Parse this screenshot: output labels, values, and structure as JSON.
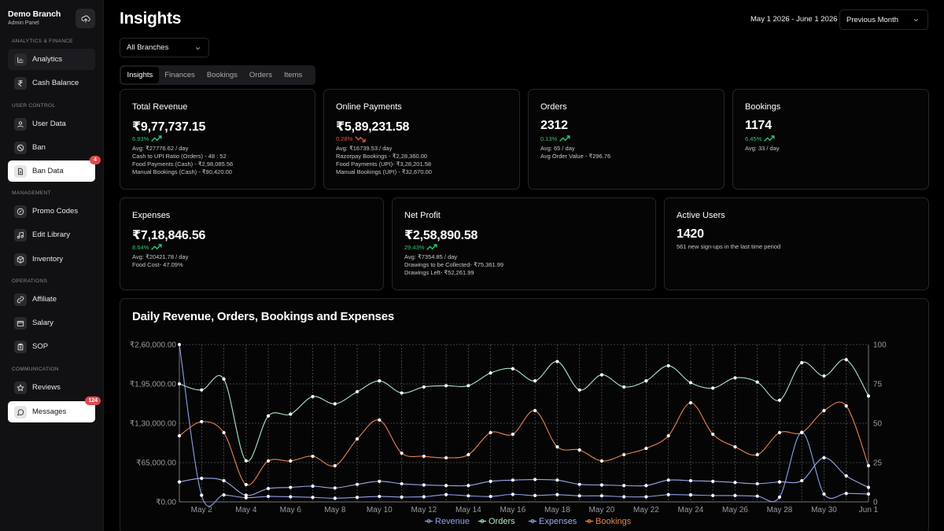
{
  "sidebar": {
    "brand_name": "Demo Branch",
    "brand_sub": "Admin Panel",
    "sections": {
      "analytics": "ANALYTICS & FINANCE",
      "user": "USER CONTROL",
      "management": "MANAGEMENT",
      "operations": "OPERATIONS",
      "communication": "COMMUNICATION"
    },
    "items": {
      "analytics": "Analytics",
      "cash_balance": "Cash Balance",
      "user_data": "User Data",
      "ban": "Ban",
      "ban_data": "Ban Data",
      "ban_data_badge": "4",
      "promo_codes": "Promo Codes",
      "edit_library": "Edit Library",
      "inventory": "Inventory",
      "affiliate": "Affiliate",
      "salary": "Salary",
      "sop": "SOP",
      "reviews": "Reviews",
      "messages": "Messages",
      "messages_badge": "124"
    }
  },
  "header": {
    "title": "Insights",
    "date_range": "May 1 2026 - June 1 2026",
    "period": "Previous Month",
    "branch": "All Branches"
  },
  "tabs": [
    "Insights",
    "Finances",
    "Bookings",
    "Orders",
    "Items"
  ],
  "cards": {
    "revenue": {
      "title": "Total Revenue",
      "value": "₹9,77,737.15",
      "change": "6.93%",
      "details": [
        "Avg: ₹27776.62 / day",
        "Cash to UPI Ratio (Orders) - 48 : 52",
        "Food Payments (Cash) - ₹2,98,085.56",
        "Manual Bookings (Cash) - ₹90,420.00"
      ]
    },
    "online": {
      "title": "Online Payments",
      "value": "₹5,89,231.58",
      "change": "0.28%",
      "details": [
        "Avg: ₹16739.53 / day",
        "Razorpay Bookings - ₹2,28,360.00",
        "Food Payments (UPI)- ₹3,28,201.58",
        "Manual Bookings (UPI) - ₹32,670.00"
      ]
    },
    "orders": {
      "title": "Orders",
      "value": "2312",
      "change": "0.13%",
      "details": [
        "Avg: 65 / day",
        "Avg Order Value - ₹296.76"
      ]
    },
    "bookings": {
      "title": "Bookings",
      "value": "1174",
      "change": "6.45%",
      "details": [
        "Avg: 33 / day"
      ]
    },
    "expenses": {
      "title": "Expenses",
      "value": "₹7,18,846.56",
      "change": "8.64%",
      "details": [
        "Avg: ₹20421.78 / day",
        "Food Cost- 47.09%"
      ]
    },
    "profit": {
      "title": "Net Profit",
      "value": "₹2,58,890.58",
      "change": "29.43%",
      "details": [
        "Avg: ₹7354.85 / day",
        "Drawings to be Collected- ₹75,361.99",
        "Drawings Left- ₹52,261.99"
      ]
    },
    "users": {
      "title": "Active Users",
      "value": "1420",
      "details": [
        "561 new sign-ups in the last time period"
      ]
    }
  },
  "chart_data": {
    "type": "line",
    "title": "Daily Revenue, Orders, Bookings and Expenses",
    "x_tick_labels": [
      "May 2",
      "May 4",
      "May 6",
      "May 8",
      "May 10",
      "May 12",
      "May 14",
      "May 16",
      "May 18",
      "May 20",
      "May 22",
      "May 24",
      "May 26",
      "May 28",
      "May 30",
      "Jun 1"
    ],
    "y_left_ticks": [
      "₹0.00",
      "₹65,000.00",
      "₹1,30,000.00",
      "₹1,95,000.00",
      "₹2,60,000.00"
    ],
    "y_left_range": [
      0,
      260000
    ],
    "y_right_ticks": [
      "0",
      "25",
      "50",
      "75",
      "100"
    ],
    "y_right_range": [
      0,
      100
    ],
    "grid": true,
    "legend_position": "bottom",
    "x": [
      "May 1",
      "May 2",
      "May 3",
      "May 4",
      "May 5",
      "May 6",
      "May 7",
      "May 8",
      "May 9",
      "May 10",
      "May 11",
      "May 12",
      "May 13",
      "May 14",
      "May 15",
      "May 16",
      "May 17",
      "May 18",
      "May 19",
      "May 20",
      "May 21",
      "May 22",
      "May 23",
      "May 24",
      "May 25",
      "May 26",
      "May 27",
      "May 28",
      "May 29",
      "May 30",
      "May 31",
      "Jun 1"
    ],
    "series": [
      {
        "name": "Revenue",
        "axis": "left",
        "color": "#8ea0e8",
        "values": [
          260000,
          11000,
          11500,
          7000,
          9000,
          8500,
          7500,
          6000,
          7500,
          9000,
          8000,
          8500,
          12000,
          10000,
          9000,
          12500,
          10500,
          12000,
          10000,
          10000,
          8500,
          8500,
          12000,
          11500,
          10500,
          10500,
          9500,
          8000,
          115000,
          13000,
          14000,
          13000
        ]
      },
      {
        "name": "Orders",
        "axis": "left",
        "color": "#a8e6c0",
        "values": [
          195000,
          185000,
          203000,
          68000,
          142000,
          145000,
          174000,
          162000,
          182000,
          200000,
          180000,
          190000,
          192000,
          192000,
          213000,
          220000,
          200000,
          232000,
          185000,
          210000,
          190000,
          200000,
          225000,
          197000,
          188000,
          205000,
          198000,
          168000,
          230000,
          208000,
          235000,
          175000
        ]
      },
      {
        "name": "Expenses",
        "axis": "left",
        "color": "#9aa8e8",
        "values": [
          33000,
          39000,
          35000,
          11000,
          22000,
          24000,
          26000,
          23000,
          29000,
          34000,
          30000,
          28000,
          27000,
          27000,
          34000,
          36000,
          37000,
          36000,
          29000,
          28000,
          27000,
          27000,
          36000,
          35000,
          34000,
          32000,
          30000,
          33000,
          35000,
          73000,
          43000,
          24000
        ]
      },
      {
        "name": "Bookings",
        "axis": "right",
        "color": "#e8834a",
        "values": [
          42,
          51,
          44,
          11,
          26,
          26,
          29,
          23,
          40,
          52,
          31,
          29,
          28,
          30,
          44,
          43,
          58,
          35,
          33,
          26,
          30,
          34,
          42,
          63,
          43,
          35,
          30,
          44,
          44,
          58,
          61,
          23
        ]
      }
    ]
  }
}
